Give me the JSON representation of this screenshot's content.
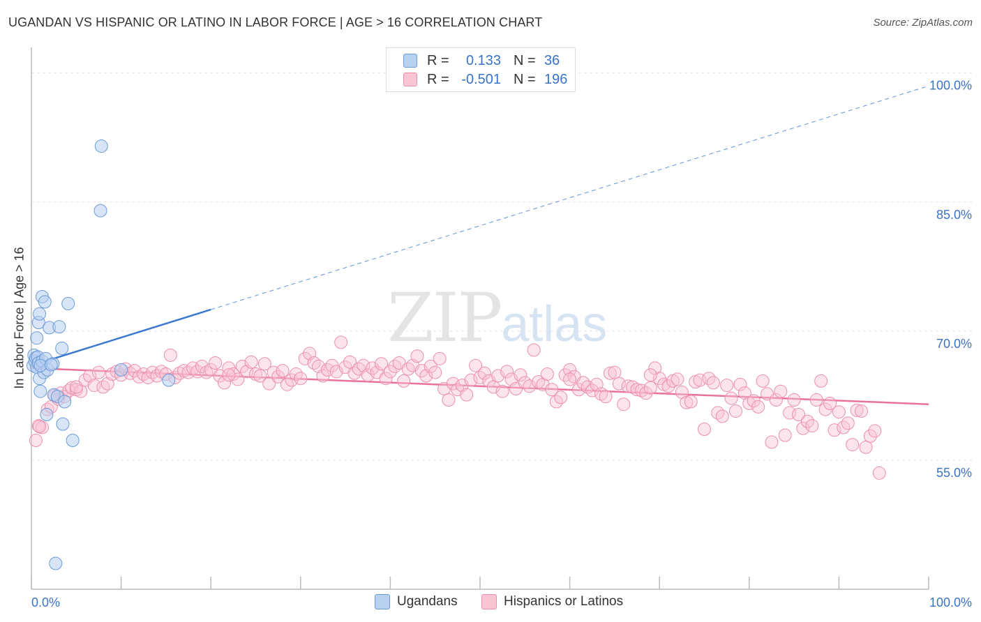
{
  "header": {
    "title": "UGANDAN VS HISPANIC OR LATINO IN LABOR FORCE | AGE > 16 CORRELATION CHART",
    "source": "Source: ZipAtlas.com"
  },
  "watermark": {
    "zip": "ZIP",
    "atlas": "atlas"
  },
  "legend": {
    "rows": [
      {
        "r_label": "R =",
        "r_value": "0.133",
        "n_label": "N =",
        "n_value": "36",
        "color": "#b8d0f0",
        "stroke": "#6a9ad8"
      },
      {
        "r_label": "R =",
        "r_value": "-0.501",
        "n_label": "N =",
        "n_value": "196",
        "color": "#f9c4d4",
        "stroke": "#ec8fab"
      }
    ]
  },
  "bottom_legend": {
    "items": [
      {
        "label": "Ugandans",
        "color": "#b8d0f0",
        "stroke": "#6a9ad8"
      },
      {
        "label": "Hispanics or Latinos",
        "color": "#f9c4d4",
        "stroke": "#ec8fab"
      }
    ]
  },
  "chart_data": {
    "type": "scatter",
    "title": "UGANDAN VS HISPANIC OR LATINO IN LABOR FORCE | AGE > 16 CORRELATION CHART",
    "xlabel": "",
    "ylabel": "In Labor Force | Age > 16",
    "xlim": [
      0,
      100
    ],
    "ylim": [
      40,
      102
    ],
    "x_tick_labels": [
      "0.0%",
      "100.0%"
    ],
    "y_ticks": [
      55,
      70,
      85,
      100
    ],
    "y_tick_labels": [
      "55.0%",
      "70.0%",
      "85.0%",
      "100.0%"
    ],
    "grid": true,
    "legend_position": "top-center",
    "colors": {
      "ugandans": "#3a78d0",
      "hispanics": "#e8729a"
    },
    "series": [
      {
        "name": "Ugandans",
        "points": [
          [
            0.2,
            66.0
          ],
          [
            0.3,
            67.2
          ],
          [
            0.4,
            66.5
          ],
          [
            0.5,
            66.9
          ],
          [
            0.6,
            65.8
          ],
          [
            0.7,
            67.0
          ],
          [
            0.8,
            66.3
          ],
          [
            0.9,
            64.5
          ],
          [
            1.0,
            63.0
          ],
          [
            0.6,
            69.2
          ],
          [
            0.8,
            71.0
          ],
          [
            0.9,
            72.0
          ],
          [
            1.2,
            74.0
          ],
          [
            1.5,
            73.4
          ],
          [
            1.2,
            66.5
          ],
          [
            1.4,
            65.2
          ],
          [
            1.6,
            66.8
          ],
          [
            1.8,
            65.5
          ],
          [
            2.0,
            70.4
          ],
          [
            2.4,
            66.2
          ],
          [
            2.5,
            62.6
          ],
          [
            2.9,
            62.4
          ],
          [
            3.1,
            70.5
          ],
          [
            3.4,
            68.0
          ],
          [
            3.7,
            61.8
          ],
          [
            4.1,
            73.2
          ],
          [
            4.6,
            57.3
          ],
          [
            1.7,
            60.3
          ],
          [
            3.5,
            59.2
          ],
          [
            2.7,
            43.0
          ],
          [
            7.7,
            84.0
          ],
          [
            7.8,
            91.5
          ],
          [
            10.0,
            65.5
          ],
          [
            15.3,
            64.3
          ],
          [
            1.0,
            66.0
          ],
          [
            2.2,
            66.1
          ]
        ],
        "trend": {
          "solid": [
            [
              0,
              66.0
            ],
            [
              20,
              72.5
            ]
          ],
          "dashed": [
            [
              20,
              72.5
            ],
            [
              100,
              98.5
            ]
          ]
        }
      },
      {
        "name": "Hispanics or Latinos",
        "points": [
          [
            0.5,
            57.3
          ],
          [
            0.8,
            59.0
          ],
          [
            1.2,
            58.8
          ],
          [
            1.8,
            60.9
          ],
          [
            2.2,
            61.2
          ],
          [
            2.6,
            62.5
          ],
          [
            3.0,
            62.1
          ],
          [
            3.3,
            62.8
          ],
          [
            3.7,
            62.4
          ],
          [
            4.2,
            63.1
          ],
          [
            4.5,
            63.4
          ],
          [
            5.0,
            63.2
          ],
          [
            5.5,
            63.0
          ],
          [
            6.0,
            64.3
          ],
          [
            6.5,
            64.8
          ],
          [
            7.0,
            63.7
          ],
          [
            7.5,
            65.2
          ],
          [
            8.0,
            63.5
          ],
          [
            8.5,
            63.9
          ],
          [
            9.0,
            65.0
          ],
          [
            9.5,
            65.3
          ],
          [
            10.0,
            64.9
          ],
          [
            10.5,
            65.6
          ],
          [
            11.0,
            65.1
          ],
          [
            11.5,
            65.4
          ],
          [
            12.0,
            64.7
          ],
          [
            12.5,
            65.0
          ],
          [
            13.0,
            64.6
          ],
          [
            13.5,
            65.2
          ],
          [
            14.0,
            64.8
          ],
          [
            14.5,
            65.3
          ],
          [
            15.0,
            65.0
          ],
          [
            15.5,
            67.2
          ],
          [
            16.0,
            64.6
          ],
          [
            16.5,
            65.1
          ],
          [
            17.0,
            65.4
          ],
          [
            17.5,
            65.2
          ],
          [
            18.0,
            65.7
          ],
          [
            18.5,
            65.3
          ],
          [
            19.0,
            65.9
          ],
          [
            19.5,
            65.2
          ],
          [
            20.0,
            65.5
          ],
          [
            20.5,
            66.3
          ],
          [
            21.0,
            64.8
          ],
          [
            21.5,
            64.0
          ],
          [
            22.0,
            65.7
          ],
          [
            22.5,
            65.0
          ],
          [
            23.0,
            64.4
          ],
          [
            23.5,
            65.9
          ],
          [
            24.0,
            65.3
          ],
          [
            24.5,
            66.4
          ],
          [
            25.0,
            65.0
          ],
          [
            25.5,
            64.8
          ],
          [
            26.0,
            66.2
          ],
          [
            26.5,
            63.9
          ],
          [
            27.0,
            65.2
          ],
          [
            27.5,
            64.7
          ],
          [
            28.0,
            65.4
          ],
          [
            28.5,
            63.8
          ],
          [
            29.0,
            64.3
          ],
          [
            29.5,
            65.0
          ],
          [
            30.0,
            64.5
          ],
          [
            30.5,
            66.8
          ],
          [
            31.0,
            67.4
          ],
          [
            31.5,
            66.3
          ],
          [
            32.0,
            65.9
          ],
          [
            32.5,
            64.8
          ],
          [
            33.0,
            65.5
          ],
          [
            33.5,
            66.0
          ],
          [
            34.0,
            65.3
          ],
          [
            34.5,
            68.7
          ],
          [
            35.0,
            65.8
          ],
          [
            35.5,
            66.4
          ],
          [
            36.0,
            65.1
          ],
          [
            36.5,
            65.6
          ],
          [
            37.0,
            66.0
          ],
          [
            37.5,
            64.9
          ],
          [
            38.0,
            65.7
          ],
          [
            38.5,
            65.2
          ],
          [
            39.0,
            66.2
          ],
          [
            39.5,
            64.5
          ],
          [
            40.0,
            65.3
          ],
          [
            40.5,
            65.9
          ],
          [
            41.0,
            66.3
          ],
          [
            41.5,
            64.2
          ],
          [
            42.0,
            65.6
          ],
          [
            42.5,
            66.0
          ],
          [
            43.0,
            67.1
          ],
          [
            43.5,
            65.4
          ],
          [
            44.0,
            64.8
          ],
          [
            44.5,
            65.9
          ],
          [
            45.0,
            65.2
          ],
          [
            45.5,
            66.8
          ],
          [
            46.0,
            63.3
          ],
          [
            46.5,
            62.0
          ],
          [
            47.0,
            63.9
          ],
          [
            47.5,
            63.2
          ],
          [
            48.0,
            63.7
          ],
          [
            48.5,
            62.6
          ],
          [
            49.0,
            64.3
          ],
          [
            49.5,
            66.0
          ],
          [
            50.0,
            64.6
          ],
          [
            50.5,
            65.1
          ],
          [
            51.0,
            64.2
          ],
          [
            51.5,
            63.5
          ],
          [
            52.0,
            64.8
          ],
          [
            52.5,
            63.0
          ],
          [
            53.0,
            65.3
          ],
          [
            53.5,
            64.4
          ],
          [
            54.0,
            63.3
          ],
          [
            54.5,
            64.9
          ],
          [
            55.0,
            64.0
          ],
          [
            55.5,
            63.6
          ],
          [
            56.0,
            67.8
          ],
          [
            56.5,
            64.1
          ],
          [
            57.0,
            63.8
          ],
          [
            57.5,
            65.0
          ],
          [
            58.0,
            63.2
          ],
          [
            58.5,
            61.8
          ],
          [
            59.0,
            62.3
          ],
          [
            59.5,
            64.9
          ],
          [
            60.0,
            65.5
          ],
          [
            60.5,
            64.7
          ],
          [
            61.0,
            63.2
          ],
          [
            61.5,
            64.0
          ],
          [
            62.0,
            63.5
          ],
          [
            62.5,
            63.1
          ],
          [
            63.0,
            63.8
          ],
          [
            63.5,
            62.7
          ],
          [
            64.0,
            62.4
          ],
          [
            64.5,
            65.1
          ],
          [
            65.0,
            65.2
          ],
          [
            65.5,
            63.9
          ],
          [
            66.0,
            61.5
          ],
          [
            66.5,
            63.6
          ],
          [
            67.0,
            63.5
          ],
          [
            67.5,
            63.2
          ],
          [
            68.0,
            63.1
          ],
          [
            68.5,
            62.8
          ],
          [
            69.0,
            63.4
          ],
          [
            69.5,
            65.7
          ],
          [
            70.0,
            64.5
          ],
          [
            70.5,
            63.8
          ],
          [
            71.0,
            63.6
          ],
          [
            71.5,
            64.2
          ],
          [
            72.0,
            64.4
          ],
          [
            72.5,
            62.9
          ],
          [
            73.0,
            61.7
          ],
          [
            73.5,
            61.8
          ],
          [
            74.0,
            64.1
          ],
          [
            74.5,
            64.3
          ],
          [
            75.0,
            58.6
          ],
          [
            75.5,
            64.5
          ],
          [
            76.0,
            64.0
          ],
          [
            76.5,
            60.5
          ],
          [
            77.0,
            60.1
          ],
          [
            77.5,
            63.7
          ],
          [
            78.0,
            62.2
          ],
          [
            78.5,
            60.7
          ],
          [
            79.0,
            63.8
          ],
          [
            79.5,
            62.8
          ],
          [
            80.0,
            61.6
          ],
          [
            80.5,
            61.9
          ],
          [
            81.0,
            61.2
          ],
          [
            81.5,
            64.2
          ],
          [
            82.0,
            62.7
          ],
          [
            82.5,
            57.1
          ],
          [
            83.0,
            62.0
          ],
          [
            83.5,
            63.0
          ],
          [
            84.0,
            57.9
          ],
          [
            84.5,
            60.5
          ],
          [
            85.0,
            62.0
          ],
          [
            85.5,
            60.3
          ],
          [
            86.0,
            58.7
          ],
          [
            86.5,
            59.5
          ],
          [
            87.0,
            59.0
          ],
          [
            87.5,
            62.0
          ],
          [
            88.0,
            64.2
          ],
          [
            88.5,
            60.9
          ],
          [
            89.0,
            61.6
          ],
          [
            89.5,
            58.5
          ],
          [
            90.0,
            60.6
          ],
          [
            90.5,
            58.8
          ],
          [
            91.0,
            59.3
          ],
          [
            91.5,
            56.8
          ],
          [
            92.0,
            60.8
          ],
          [
            92.5,
            60.7
          ],
          [
            93.0,
            56.5
          ],
          [
            93.5,
            57.8
          ],
          [
            94.0,
            58.4
          ],
          [
            94.5,
            53.5
          ],
          [
            22.0,
            64.9
          ],
          [
            5.0,
            63.5
          ],
          [
            0.9,
            58.9
          ],
          [
            60.0,
            64.4
          ],
          [
            69.0,
            64.9
          ]
        ],
        "trend": {
          "solid": [
            [
              0,
              65.7
            ],
            [
              100,
              61.5
            ]
          ]
        }
      }
    ]
  }
}
